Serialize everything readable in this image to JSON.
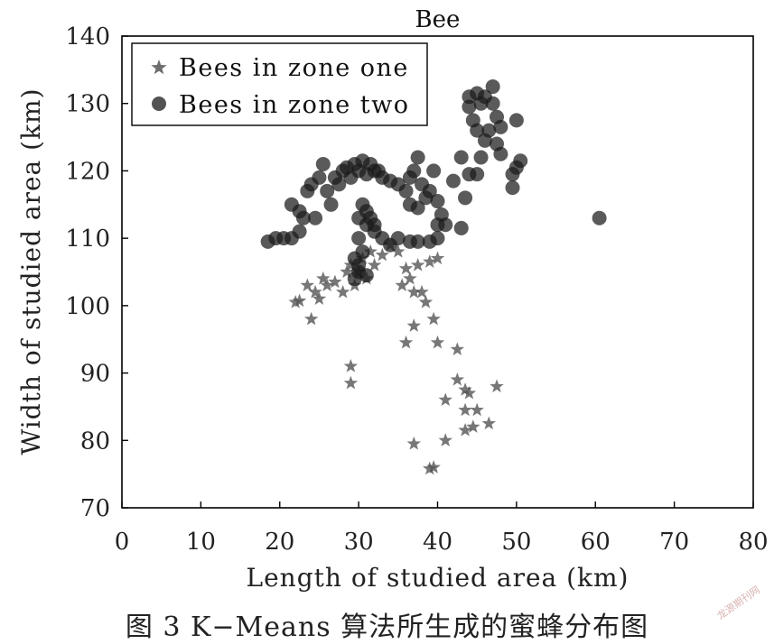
{
  "chart_data": {
    "type": "scatter",
    "title": "Bee",
    "xlabel": "Length of studied area (km)",
    "ylabel": "Width of studied area (km)",
    "xlim": [
      0,
      80
    ],
    "ylim": [
      70,
      140
    ],
    "xticks": [
      0,
      10,
      20,
      30,
      40,
      50,
      60,
      70,
      80
    ],
    "yticks": [
      70,
      80,
      90,
      100,
      110,
      120,
      130,
      140
    ],
    "grid": false,
    "legend_position": "top-left",
    "series": [
      {
        "name": "Bees in zone one",
        "marker": "star",
        "color": "#555555",
        "points": [
          [
            22,
            100.5
          ],
          [
            22.5,
            100.7
          ],
          [
            23.5,
            103
          ],
          [
            24,
            98
          ],
          [
            24.5,
            102
          ],
          [
            25,
            101
          ],
          [
            25.5,
            104
          ],
          [
            26,
            103
          ],
          [
            27,
            103.5
          ],
          [
            28,
            102
          ],
          [
            28.5,
            105
          ],
          [
            29,
            106
          ],
          [
            29.5,
            103
          ],
          [
            30,
            105
          ],
          [
            30.5,
            107
          ],
          [
            31,
            104
          ],
          [
            31.5,
            108
          ],
          [
            32,
            106
          ],
          [
            33,
            107.5
          ],
          [
            34,
            109
          ],
          [
            35,
            108
          ],
          [
            35.5,
            103
          ],
          [
            36,
            105.5
          ],
          [
            36.5,
            104
          ],
          [
            37,
            102
          ],
          [
            37.5,
            106
          ],
          [
            38,
            102
          ],
          [
            38.5,
            100.5
          ],
          [
            39,
            106.5
          ],
          [
            40,
            107
          ],
          [
            39.5,
            98
          ],
          [
            37,
            97
          ],
          [
            36,
            94.5
          ],
          [
            40,
            94.5
          ],
          [
            42.5,
            93.5
          ],
          [
            29,
            91
          ],
          [
            29,
            88.5
          ],
          [
            42.5,
            89
          ],
          [
            43.5,
            87.5
          ],
          [
            44,
            87
          ],
          [
            41,
            86
          ],
          [
            43.5,
            84.5
          ],
          [
            45,
            84.5
          ],
          [
            47.5,
            88
          ],
          [
            46.5,
            82.5
          ],
          [
            44.5,
            82
          ],
          [
            43.5,
            81.5
          ],
          [
            41,
            80
          ],
          [
            37,
            79.5
          ],
          [
            39.5,
            76
          ],
          [
            39,
            75.8
          ]
        ]
      },
      {
        "name": "Bees in zone two",
        "marker": "circle",
        "color": "#1a1a1a",
        "points": [
          [
            18.5,
            109.5
          ],
          [
            19.5,
            110
          ],
          [
            20.5,
            110
          ],
          [
            21.5,
            110
          ],
          [
            22.5,
            111
          ],
          [
            21.5,
            115
          ],
          [
            22.5,
            114
          ],
          [
            23,
            113
          ],
          [
            23.5,
            117
          ],
          [
            24,
            118
          ],
          [
            24.5,
            113
          ],
          [
            25,
            119
          ],
          [
            25.5,
            121
          ],
          [
            26,
            117
          ],
          [
            26.5,
            115
          ],
          [
            27,
            119
          ],
          [
            27.5,
            118
          ],
          [
            28,
            120
          ],
          [
            28.5,
            120.5
          ],
          [
            29,
            119
          ],
          [
            29.5,
            121
          ],
          [
            30,
            120
          ],
          [
            30.5,
            121.5
          ],
          [
            31,
            119.5
          ],
          [
            31.5,
            121
          ],
          [
            32,
            120
          ],
          [
            32.5,
            120
          ],
          [
            33,
            119
          ],
          [
            34,
            118.5
          ],
          [
            35,
            118
          ],
          [
            36,
            117
          ],
          [
            36.5,
            119
          ],
          [
            37,
            120
          ],
          [
            37.5,
            122
          ],
          [
            38,
            118
          ],
          [
            38.5,
            116
          ],
          [
            36.5,
            115
          ],
          [
            37.5,
            114.5
          ],
          [
            39,
            117
          ],
          [
            39.5,
            120
          ],
          [
            40,
            115.5
          ],
          [
            40.5,
            113.5
          ],
          [
            40,
            112
          ],
          [
            40,
            110
          ],
          [
            41,
            112
          ],
          [
            37.5,
            109.5
          ],
          [
            39,
            109.5
          ],
          [
            36.5,
            109.5
          ],
          [
            35,
            110
          ],
          [
            34,
            109
          ],
          [
            33,
            110
          ],
          [
            32,
            111
          ],
          [
            31,
            112
          ],
          [
            30,
            113
          ],
          [
            30.5,
            115
          ],
          [
            31,
            114
          ],
          [
            31.5,
            113
          ],
          [
            32,
            112
          ],
          [
            30,
            110
          ],
          [
            30.5,
            108
          ],
          [
            29.5,
            107
          ],
          [
            30,
            106
          ],
          [
            29.5,
            104
          ],
          [
            30,
            105
          ],
          [
            31,
            104.5
          ],
          [
            42,
            118.5
          ],
          [
            43,
            122
          ],
          [
            44,
            119.5
          ],
          [
            43.5,
            116
          ],
          [
            43,
            111.5
          ],
          [
            45,
            119.5
          ],
          [
            45.5,
            122
          ],
          [
            46,
            124.5
          ],
          [
            46.5,
            126
          ],
          [
            45,
            126
          ],
          [
            44.5,
            127.5
          ],
          [
            44,
            129.5
          ],
          [
            44,
            131
          ],
          [
            45,
            131.5
          ],
          [
            45.5,
            130
          ],
          [
            46,
            131
          ],
          [
            47,
            132.5
          ],
          [
            47,
            130
          ],
          [
            47.5,
            128
          ],
          [
            48,
            126.5
          ],
          [
            47.5,
            124
          ],
          [
            48,
            122.5
          ],
          [
            49.5,
            119.5
          ],
          [
            49.5,
            117.5
          ],
          [
            50,
            120.5
          ],
          [
            50.5,
            121.5
          ],
          [
            50,
            127.5
          ],
          [
            60.5,
            113
          ]
        ]
      }
    ]
  },
  "figure": {
    "caption": "图 3   K−Means 算法所生成的蜜蜂分布图",
    "watermark": "龙源期刊网"
  }
}
